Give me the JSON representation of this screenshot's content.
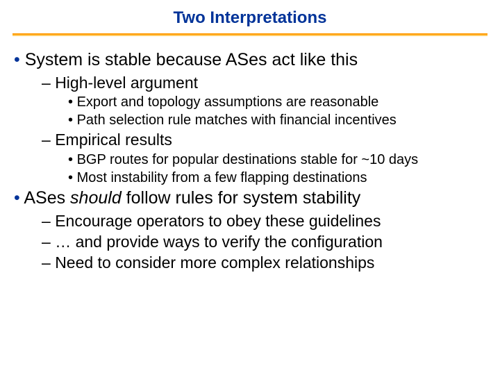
{
  "title": "Two Interpretations",
  "title_color": "#003399",
  "title_fontsize": 24,
  "divider_colors": [
    "#ff9900",
    "#ffcc66"
  ],
  "background_color": "#ffffff",
  "text_color": "#000000",
  "bullet_color": "#003399",
  "font_family": "Verdana",
  "l1_fontsize": 25,
  "l2_fontsize": 23,
  "l3_fontsize": 20,
  "b1": {
    "text": "System is stable because ASes act like this",
    "sub1": {
      "text": "High-level argument",
      "a": "Export and topology assumptions are reasonable",
      "b": "Path selection rule matches with financial incentives"
    },
    "sub2": {
      "text": "Empirical results",
      "a": "BGP routes for popular destinations stable for ~10 days",
      "b": "Most instability from a few flapping destinations"
    }
  },
  "b2": {
    "pre": "ASes ",
    "italic": "should",
    "post": " follow rules for system stability",
    "a": "Encourage operators to obey these guidelines",
    "b": "… and provide ways to verify the configuration",
    "c": "Need to consider more complex relationships"
  }
}
